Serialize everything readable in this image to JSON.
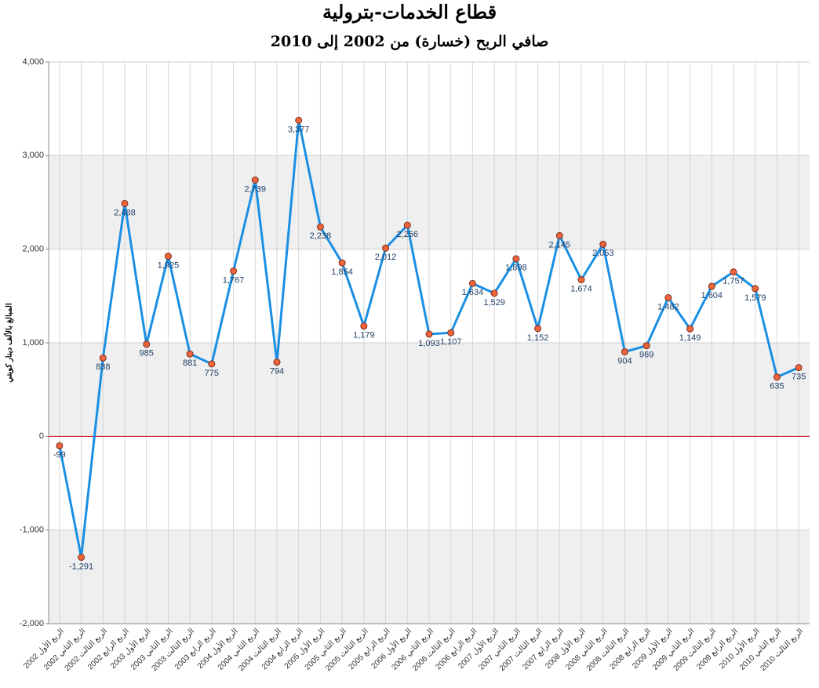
{
  "chart_data": {
    "type": "line",
    "title": "قطاع الخدمات-بترولية",
    "subtitle": "صافي الربح (خسارة) من 2002 إلى 2010",
    "y_label": "المبالغ بالألف دينار كويتي",
    "categories": [
      "الربع الأول 2002",
      "الربع الثاني 2002",
      "الربع الثالث 2002",
      "الربع الرابع 2002",
      "الربع الأول 2003",
      "الربع الثاني 2003",
      "الربع الثالث 2003",
      "الربع الرابع 2003",
      "الربع الأول 2004",
      "الربع الثاني 2004",
      "الربع الثالث 2004",
      "الربع الرابع 2004",
      "الربع الأول 2005",
      "الربع الثاني 2005",
      "الربع الثالث 2005",
      "الربع الرابع 2005",
      "الربع الأول 2006",
      "الربع الثاني 2006",
      "الربع الثالث 2006",
      "الربع الرابع 2006",
      "الربع الأول 2007",
      "الربع الثاني 2007",
      "الربع الثالث 2007",
      "الربع الرابع 2007",
      "الربع الأول 2008",
      "الربع الثاني 2008",
      "الربع الثالث 2008",
      "الربع الرابع 2008",
      "الربع الأول 2009",
      "الربع الثاني 2009",
      "الربع الثالث 2009",
      "الربع الرابع 2009",
      "الربع الأول 2010",
      "الربع الثاني 2010",
      "الربع الثالث 2010"
    ],
    "values": [
      -99,
      -1291,
      838,
      2488,
      985,
      1925,
      881,
      775,
      1767,
      2739,
      794,
      3377,
      2238,
      1854,
      1179,
      2012,
      2256,
      1093,
      1107,
      1634,
      1529,
      1898,
      1152,
      2145,
      1674,
      2053,
      904,
      969,
      1482,
      1149,
      1604,
      1757,
      1579,
      635,
      735
    ],
    "value_labels": [
      "-99",
      "-1,291",
      "838",
      "2,488",
      "985",
      "1,925",
      "881",
      "775",
      "1,767",
      "2,739",
      "794",
      "3,377",
      "2,238",
      "1,854",
      "1,179",
      "2,012",
      "2,256",
      "1,093",
      "1,107",
      "1,634",
      "1,529",
      "1,898",
      "1,152",
      "2,145",
      "1,674",
      "2,053",
      "904",
      "969",
      "1,482",
      "1,149",
      "1,604",
      "1,757",
      "1,579",
      "635",
      "735"
    ],
    "color": "#1a8fe3",
    "marker_color": "#f0643c",
    "zero_line_color": "#cc0000",
    "ylim": [
      -2000,
      4000
    ],
    "yticks": [
      {
        "value": -2000,
        "label": "-2,000"
      },
      {
        "value": -1000,
        "label": "-1,000"
      },
      0,
      {
        "value": 1000,
        "label": "1,000"
      },
      {
        "value": 2000,
        "label": "2,000"
      },
      {
        "value": 3000,
        "label": "3,000"
      },
      {
        "value": 4000,
        "label": "4,000"
      }
    ],
    "grid": true
  }
}
